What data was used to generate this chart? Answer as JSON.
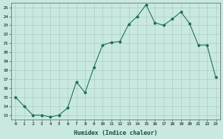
{
  "x": [
    0,
    1,
    2,
    3,
    4,
    5,
    6,
    7,
    8,
    9,
    10,
    11,
    12,
    13,
    14,
    15,
    16,
    17,
    18,
    19,
    20,
    21,
    22,
    23
  ],
  "y": [
    15,
    14,
    13,
    13,
    12.8,
    13,
    13.8,
    16.7,
    15.5,
    18.3,
    20.8,
    21.1,
    21.2,
    23.1,
    24.0,
    25.3,
    23.3,
    23.0,
    23.7,
    24.5,
    23.2,
    20.8,
    20.8,
    17.2
  ],
  "line_color": "#1a6b5a",
  "marker_color": "#1a6b5a",
  "bg_color": "#c8e8e0",
  "grid_color": "#a8cec6",
  "xlabel": "Humidex (Indice chaleur)",
  "ylim": [
    12.5,
    25.5
  ],
  "yticks": [
    13,
    14,
    15,
    16,
    17,
    18,
    19,
    20,
    21,
    22,
    23,
    24,
    25
  ],
  "xticks": [
    0,
    1,
    2,
    3,
    4,
    5,
    6,
    7,
    8,
    9,
    10,
    11,
    12,
    13,
    14,
    15,
    16,
    17,
    18,
    19,
    20,
    21,
    22,
    23
  ]
}
